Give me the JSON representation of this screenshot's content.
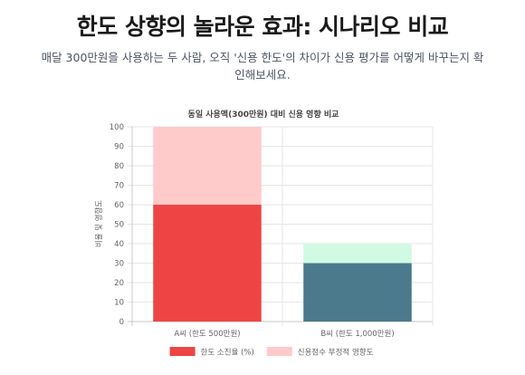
{
  "page": {
    "title": "한도 상향의 놀라운 효과: 시나리오 비교",
    "subtitle": "매달 300만원을 사용하는 두 사람, 오직 '신용 한도'의 차이가 신용 평가를 어떻게 바꾸는지 확인해보세요."
  },
  "chart_data": {
    "type": "bar",
    "stacked": true,
    "title": "동일 사용액(300만원) 대비 신용 영향 비교",
    "xlabel": "",
    "ylabel": "비율 및 영향도",
    "ylim": [
      0,
      100
    ],
    "yticks": [
      0,
      10,
      20,
      30,
      40,
      50,
      60,
      70,
      80,
      90,
      100
    ],
    "grid": true,
    "legend_position": "bottom",
    "categories": [
      "A씨 (한도 500만원)",
      "B씨 (한도 1,000만원)"
    ],
    "series": [
      {
        "name": "한도 소진율 (%)",
        "values": [
          60,
          30
        ],
        "colors": [
          "#ef4444",
          "#4a7a8c"
        ]
      },
      {
        "name": "신용점수 부정적 영향도",
        "values": [
          40,
          10
        ],
        "colors": [
          "#fecaca",
          "#d1fae5"
        ]
      }
    ],
    "legend_colors": [
      "#ef4444",
      "#fecaca"
    ]
  }
}
